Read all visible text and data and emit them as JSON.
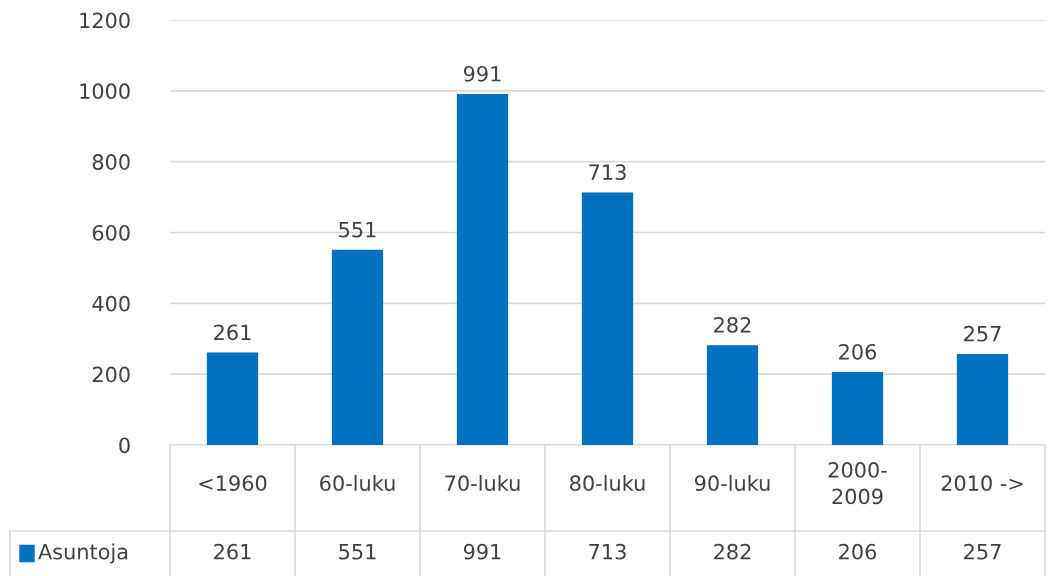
{
  "chart_data": {
    "type": "bar",
    "categories": [
      "<1960",
      "60-luku",
      "70-luku",
      "80-luku",
      "90-luku",
      "2000-\n2009",
      "2010 ->"
    ],
    "series": [
      {
        "name": "Asuntoja",
        "color": "#0070c0",
        "values": [
          261,
          551,
          991,
          713,
          282,
          206,
          257
        ]
      }
    ],
    "annotations": [
      "261",
      "551",
      "991",
      "713",
      "282",
      "206",
      "257"
    ],
    "ylim": [
      0,
      1200
    ],
    "yticks": [
      0,
      200,
      400,
      600,
      800,
      1000,
      1200
    ],
    "grid": "y",
    "data_labels": true,
    "legend": "bottom"
  }
}
